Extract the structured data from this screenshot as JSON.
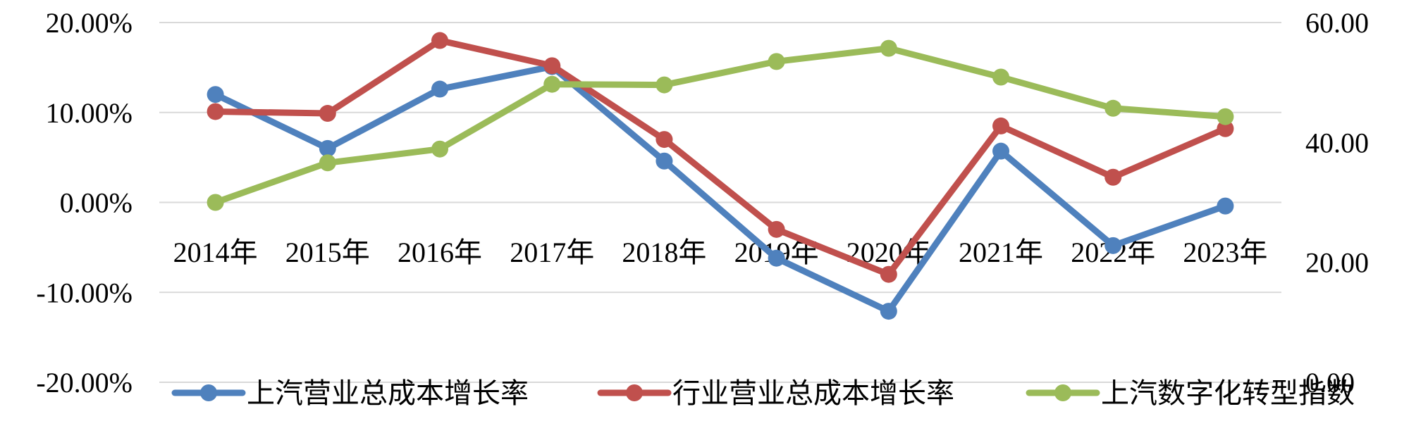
{
  "chart_data": {
    "type": "line",
    "categories": [
      "2014年",
      "2015年",
      "2016年",
      "2017年",
      "2018年",
      "2019年",
      "2020年",
      "2021年",
      "2022年",
      "2023年"
    ],
    "y_left": {
      "ticks": [
        "20.00%",
        "10.00%",
        "0.00%",
        "-10.00%",
        "-20.00%"
      ],
      "ylim": [
        -20,
        20
      ]
    },
    "y_right": {
      "ticks": [
        "60.00",
        "40.00",
        "20.00",
        "0.00"
      ],
      "ylim": [
        0,
        60
      ]
    },
    "grid": true,
    "legend_position": "bottom",
    "series": [
      {
        "name": "上汽营业总成本增长率",
        "axis": "left",
        "color": "#4F81BD",
        "values": [
          12.0,
          6.0,
          12.6,
          15.1,
          4.6,
          -6.2,
          -12.1,
          5.7,
          -4.8,
          -0.4
        ]
      },
      {
        "name": "行业营业总成本增长率",
        "axis": "left",
        "color": "#C0504D",
        "values": [
          10.1,
          9.9,
          18.0,
          15.2,
          7.0,
          -3.0,
          -8.0,
          8.5,
          2.8,
          8.2
        ]
      },
      {
        "name": "上汽数字化转型指数",
        "axis": "right",
        "color": "#9BBB59",
        "values": [
          30.0,
          36.6,
          38.9,
          49.7,
          49.6,
          53.5,
          55.7,
          50.9,
          45.7,
          44.3
        ]
      }
    ]
  }
}
